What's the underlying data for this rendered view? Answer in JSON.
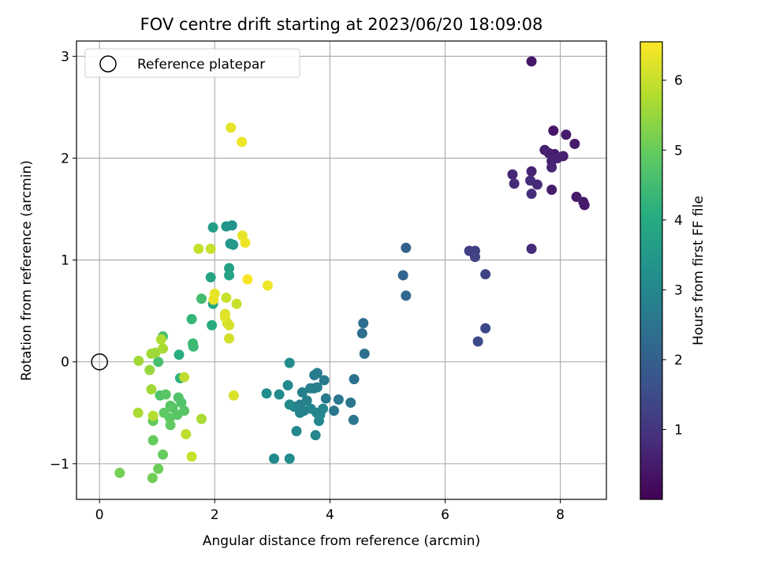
{
  "chart_data": {
    "type": "scatter",
    "title": "FOV centre drift starting at 2023/06/20 18:09:08",
    "xlabel": "Angular distance from reference (arcmin)",
    "ylabel": "Rotation from reference (arcmin)",
    "xlim": [
      -0.4,
      8.8
    ],
    "ylim": [
      -1.35,
      3.15
    ],
    "xticks": [
      0,
      2,
      4,
      6,
      8
    ],
    "yticks": [
      -1,
      0,
      1,
      2,
      3
    ],
    "grid": true,
    "legend": {
      "placement": "top-left",
      "entries": [
        "Reference platepar"
      ]
    },
    "reference_point": {
      "x": 0,
      "y": 0,
      "label": "Reference platepar"
    },
    "colorbar": {
      "label": "Hours from first FF file",
      "colormap": "viridis",
      "range": [
        0.0,
        6.55
      ],
      "ticks": [
        1,
        2,
        3,
        4,
        5,
        6
      ]
    },
    "points": [
      {
        "x": 7.5,
        "y": 2.95,
        "h": 0.4
      },
      {
        "x": 7.88,
        "y": 2.27,
        "h": 0.4
      },
      {
        "x": 8.1,
        "y": 2.23,
        "h": 0.5
      },
      {
        "x": 8.25,
        "y": 2.14,
        "h": 0.5
      },
      {
        "x": 7.73,
        "y": 2.08,
        "h": 0.55
      },
      {
        "x": 7.8,
        "y": 2.05,
        "h": 0.6
      },
      {
        "x": 7.9,
        "y": 2.04,
        "h": 0.5
      },
      {
        "x": 8.05,
        "y": 2.02,
        "h": 0.55
      },
      {
        "x": 7.95,
        "y": 2.0,
        "h": 0.6
      },
      {
        "x": 7.85,
        "y": 1.97,
        "h": 0.65
      },
      {
        "x": 7.85,
        "y": 1.91,
        "h": 0.7
      },
      {
        "x": 7.5,
        "y": 1.87,
        "h": 0.65
      },
      {
        "x": 7.17,
        "y": 1.84,
        "h": 0.7
      },
      {
        "x": 7.48,
        "y": 1.78,
        "h": 0.8
      },
      {
        "x": 7.6,
        "y": 1.74,
        "h": 0.75
      },
      {
        "x": 7.2,
        "y": 1.75,
        "h": 0.8
      },
      {
        "x": 7.85,
        "y": 1.69,
        "h": 0.5
      },
      {
        "x": 7.5,
        "y": 1.65,
        "h": 0.85
      },
      {
        "x": 8.28,
        "y": 1.62,
        "h": 0.45
      },
      {
        "x": 8.4,
        "y": 1.57,
        "h": 0.5
      },
      {
        "x": 8.42,
        "y": 1.54,
        "h": 0.45
      },
      {
        "x": 7.5,
        "y": 1.11,
        "h": 0.8
      },
      {
        "x": 6.42,
        "y": 1.09,
        "h": 1.2
      },
      {
        "x": 6.52,
        "y": 1.09,
        "h": 1.25
      },
      {
        "x": 6.52,
        "y": 1.03,
        "h": 1.3
      },
      {
        "x": 6.7,
        "y": 0.86,
        "h": 1.3
      },
      {
        "x": 6.7,
        "y": 0.33,
        "h": 1.4
      },
      {
        "x": 6.57,
        "y": 0.2,
        "h": 1.5
      },
      {
        "x": 5.32,
        "y": 1.12,
        "h": 2.0
      },
      {
        "x": 5.27,
        "y": 0.85,
        "h": 2.1
      },
      {
        "x": 5.32,
        "y": 0.65,
        "h": 2.2
      },
      {
        "x": 4.58,
        "y": 0.38,
        "h": 2.3
      },
      {
        "x": 4.56,
        "y": 0.28,
        "h": 2.35
      },
      {
        "x": 4.6,
        "y": 0.08,
        "h": 2.4
      },
      {
        "x": 4.42,
        "y": -0.17,
        "h": 2.45
      },
      {
        "x": 4.36,
        "y": -0.4,
        "h": 2.5
      },
      {
        "x": 4.41,
        "y": -0.57,
        "h": 2.55
      },
      {
        "x": 4.15,
        "y": -0.37,
        "h": 2.6
      },
      {
        "x": 4.07,
        "y": -0.48,
        "h": 2.6
      },
      {
        "x": 3.93,
        "y": -0.36,
        "h": 2.65
      },
      {
        "x": 3.9,
        "y": -0.18,
        "h": 2.65
      },
      {
        "x": 3.78,
        "y": -0.11,
        "h": 2.7
      },
      {
        "x": 3.73,
        "y": -0.13,
        "h": 2.75
      },
      {
        "x": 3.72,
        "y": -0.26,
        "h": 2.75
      },
      {
        "x": 3.78,
        "y": -0.25,
        "h": 2.8
      },
      {
        "x": 3.66,
        "y": -0.26,
        "h": 2.8
      },
      {
        "x": 3.52,
        "y": -0.3,
        "h": 2.8
      },
      {
        "x": 3.6,
        "y": -0.38,
        "h": 2.85
      },
      {
        "x": 3.48,
        "y": -0.42,
        "h": 2.85
      },
      {
        "x": 3.38,
        "y": -0.44,
        "h": 2.9
      },
      {
        "x": 3.55,
        "y": -0.48,
        "h": 2.9
      },
      {
        "x": 3.48,
        "y": -0.5,
        "h": 2.9
      },
      {
        "x": 3.67,
        "y": -0.46,
        "h": 2.95
      },
      {
        "x": 3.77,
        "y": -0.5,
        "h": 2.95
      },
      {
        "x": 3.88,
        "y": -0.46,
        "h": 3.0
      },
      {
        "x": 3.83,
        "y": -0.52,
        "h": 3.0
      },
      {
        "x": 3.81,
        "y": -0.58,
        "h": 3.0
      },
      {
        "x": 3.75,
        "y": -0.72,
        "h": 3.05
      },
      {
        "x": 3.42,
        "y": -0.68,
        "h": 3.05
      },
      {
        "x": 3.3,
        "y": -0.42,
        "h": 3.1
      },
      {
        "x": 3.27,
        "y": -0.23,
        "h": 3.1
      },
      {
        "x": 3.3,
        "y": -0.01,
        "h": 3.15
      },
      {
        "x": 3.12,
        "y": -0.32,
        "h": 3.15
      },
      {
        "x": 2.9,
        "y": -0.31,
        "h": 3.2
      },
      {
        "x": 3.03,
        "y": -0.95,
        "h": 3.1
      },
      {
        "x": 3.3,
        "y": -0.95,
        "h": 3.15
      },
      {
        "x": 2.3,
        "y": 1.34,
        "h": 3.3
      },
      {
        "x": 2.2,
        "y": 1.33,
        "h": 3.4
      },
      {
        "x": 2.27,
        "y": 1.16,
        "h": 3.4
      },
      {
        "x": 2.32,
        "y": 1.15,
        "h": 3.5
      },
      {
        "x": 1.97,
        "y": 1.32,
        "h": 3.6
      },
      {
        "x": 2.25,
        "y": 0.92,
        "h": 3.7
      },
      {
        "x": 2.25,
        "y": 0.85,
        "h": 3.75
      },
      {
        "x": 1.93,
        "y": 0.83,
        "h": 3.8
      },
      {
        "x": 1.97,
        "y": 0.57,
        "h": 3.9
      },
      {
        "x": 1.95,
        "y": 0.36,
        "h": 4.0
      },
      {
        "x": 1.38,
        "y": 0.07,
        "h": 4.1
      },
      {
        "x": 1.4,
        "y": -0.16,
        "h": 4.2
      },
      {
        "x": 1.6,
        "y": 0.42,
        "h": 4.3
      },
      {
        "x": 1.62,
        "y": 0.18,
        "h": 4.4
      },
      {
        "x": 1.63,
        "y": 0.15,
        "h": 4.4
      },
      {
        "x": 1.77,
        "y": 0.62,
        "h": 4.5
      },
      {
        "x": 1.1,
        "y": 0.25,
        "h": 4.6
      },
      {
        "x": 1.02,
        "y": 0.0,
        "h": 4.6
      },
      {
        "x": 1.05,
        "y": -0.33,
        "h": 4.7
      },
      {
        "x": 1.37,
        "y": -0.35,
        "h": 4.7
      },
      {
        "x": 1.42,
        "y": -0.4,
        "h": 4.75
      },
      {
        "x": 1.47,
        "y": -0.48,
        "h": 4.8
      },
      {
        "x": 1.35,
        "y": -0.52,
        "h": 4.8
      },
      {
        "x": 1.27,
        "y": -0.45,
        "h": 4.8
      },
      {
        "x": 1.23,
        "y": -0.43,
        "h": 4.85
      },
      {
        "x": 1.15,
        "y": -0.32,
        "h": 4.85
      },
      {
        "x": 1.12,
        "y": -0.5,
        "h": 4.9
      },
      {
        "x": 1.22,
        "y": -0.55,
        "h": 4.9
      },
      {
        "x": 1.23,
        "y": -0.62,
        "h": 4.95
      },
      {
        "x": 0.93,
        "y": -0.58,
        "h": 4.95
      },
      {
        "x": 0.93,
        "y": -0.77,
        "h": 5.0
      },
      {
        "x": 1.1,
        "y": -0.91,
        "h": 5.0
      },
      {
        "x": 1.02,
        "y": -1.05,
        "h": 5.05
      },
      {
        "x": 0.92,
        "y": -1.14,
        "h": 5.1
      },
      {
        "x": 0.35,
        "y": -1.09,
        "h": 5.15
      },
      {
        "x": 0.87,
        "y": -0.08,
        "h": 5.5
      },
      {
        "x": 0.68,
        "y": 0.01,
        "h": 5.6
      },
      {
        "x": 0.9,
        "y": 0.08,
        "h": 5.6
      },
      {
        "x": 0.97,
        "y": 0.09,
        "h": 5.6
      },
      {
        "x": 1.1,
        "y": 0.13,
        "h": 5.7
      },
      {
        "x": 1.07,
        "y": 0.22,
        "h": 5.75
      },
      {
        "x": 0.9,
        "y": -0.27,
        "h": 5.6
      },
      {
        "x": 0.67,
        "y": -0.5,
        "h": 5.7
      },
      {
        "x": 0.93,
        "y": -0.53,
        "h": 5.8
      },
      {
        "x": 1.5,
        "y": -0.71,
        "h": 5.9
      },
      {
        "x": 1.6,
        "y": -0.93,
        "h": 6.0
      },
      {
        "x": 1.77,
        "y": -0.56,
        "h": 5.7
      },
      {
        "x": 1.47,
        "y": -0.15,
        "h": 5.9
      },
      {
        "x": 2.33,
        "y": -0.33,
        "h": 6.2
      },
      {
        "x": 2.25,
        "y": 0.23,
        "h": 6.1
      },
      {
        "x": 2.22,
        "y": 0.38,
        "h": 6.1
      },
      {
        "x": 2.25,
        "y": 0.36,
        "h": 6.15
      },
      {
        "x": 2.18,
        "y": 0.47,
        "h": 6.2
      },
      {
        "x": 2.18,
        "y": 0.44,
        "h": 6.25
      },
      {
        "x": 2.2,
        "y": 0.63,
        "h": 6.0
      },
      {
        "x": 2.38,
        "y": 0.57,
        "h": 6.0
      },
      {
        "x": 2.0,
        "y": 0.67,
        "h": 6.3
      },
      {
        "x": 1.98,
        "y": 0.61,
        "h": 6.35
      },
      {
        "x": 1.72,
        "y": 1.11,
        "h": 6.0
      },
      {
        "x": 1.93,
        "y": 1.11,
        "h": 6.0
      },
      {
        "x": 2.48,
        "y": 1.24,
        "h": 6.3
      },
      {
        "x": 2.53,
        "y": 1.17,
        "h": 6.4
      },
      {
        "x": 2.57,
        "y": 0.81,
        "h": 6.5
      },
      {
        "x": 2.92,
        "y": 0.75,
        "h": 6.4
      },
      {
        "x": 2.28,
        "y": 2.3,
        "h": 6.3
      },
      {
        "x": 2.47,
        "y": 2.16,
        "h": 6.4
      }
    ]
  }
}
